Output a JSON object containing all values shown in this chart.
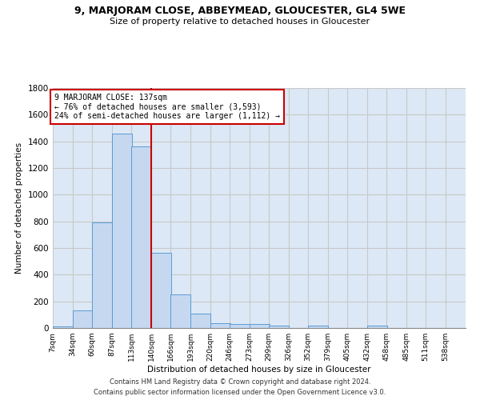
{
  "title": "9, MARJORAM CLOSE, ABBEYMEAD, GLOUCESTER, GL4 5WE",
  "subtitle": "Size of property relative to detached houses in Gloucester",
  "xlabel": "Distribution of detached houses by size in Gloucester",
  "ylabel": "Number of detached properties",
  "footer_line1": "Contains HM Land Registry data © Crown copyright and database right 2024.",
  "footer_line2": "Contains public sector information licensed under the Open Government Licence v3.0.",
  "annotation_line1": "9 MARJORAM CLOSE: 137sqm",
  "annotation_line2": "← 76% of detached houses are smaller (3,593)",
  "annotation_line3": "24% of semi-detached houses are larger (1,112) →",
  "categories": [
    "7sqm",
    "34sqm",
    "60sqm",
    "87sqm",
    "113sqm",
    "140sqm",
    "166sqm",
    "193sqm",
    "220sqm",
    "246sqm",
    "273sqm",
    "299sqm",
    "326sqm",
    "352sqm",
    "379sqm",
    "405sqm",
    "432sqm",
    "458sqm",
    "485sqm",
    "511sqm",
    "538sqm"
  ],
  "bin_edges": [
    7,
    34,
    60,
    87,
    113,
    140,
    166,
    193,
    220,
    246,
    273,
    299,
    326,
    352,
    379,
    405,
    432,
    458,
    485,
    511,
    538
  ],
  "bar_heights": [
    12,
    130,
    795,
    1460,
    1360,
    565,
    250,
    110,
    35,
    28,
    28,
    18,
    0,
    18,
    0,
    0,
    18,
    0,
    0,
    0,
    0
  ],
  "bar_color": "#c5d8f0",
  "bar_edge_color": "#5b9bd5",
  "marker_line_color": "#cc0000",
  "grid_color": "#c8c8c8",
  "bg_color": "#dce8f5",
  "annotation_box_color": "#cc0000",
  "ylim": [
    0,
    1800
  ],
  "yticks": [
    0,
    200,
    400,
    600,
    800,
    1000,
    1200,
    1400,
    1600,
    1800
  ]
}
